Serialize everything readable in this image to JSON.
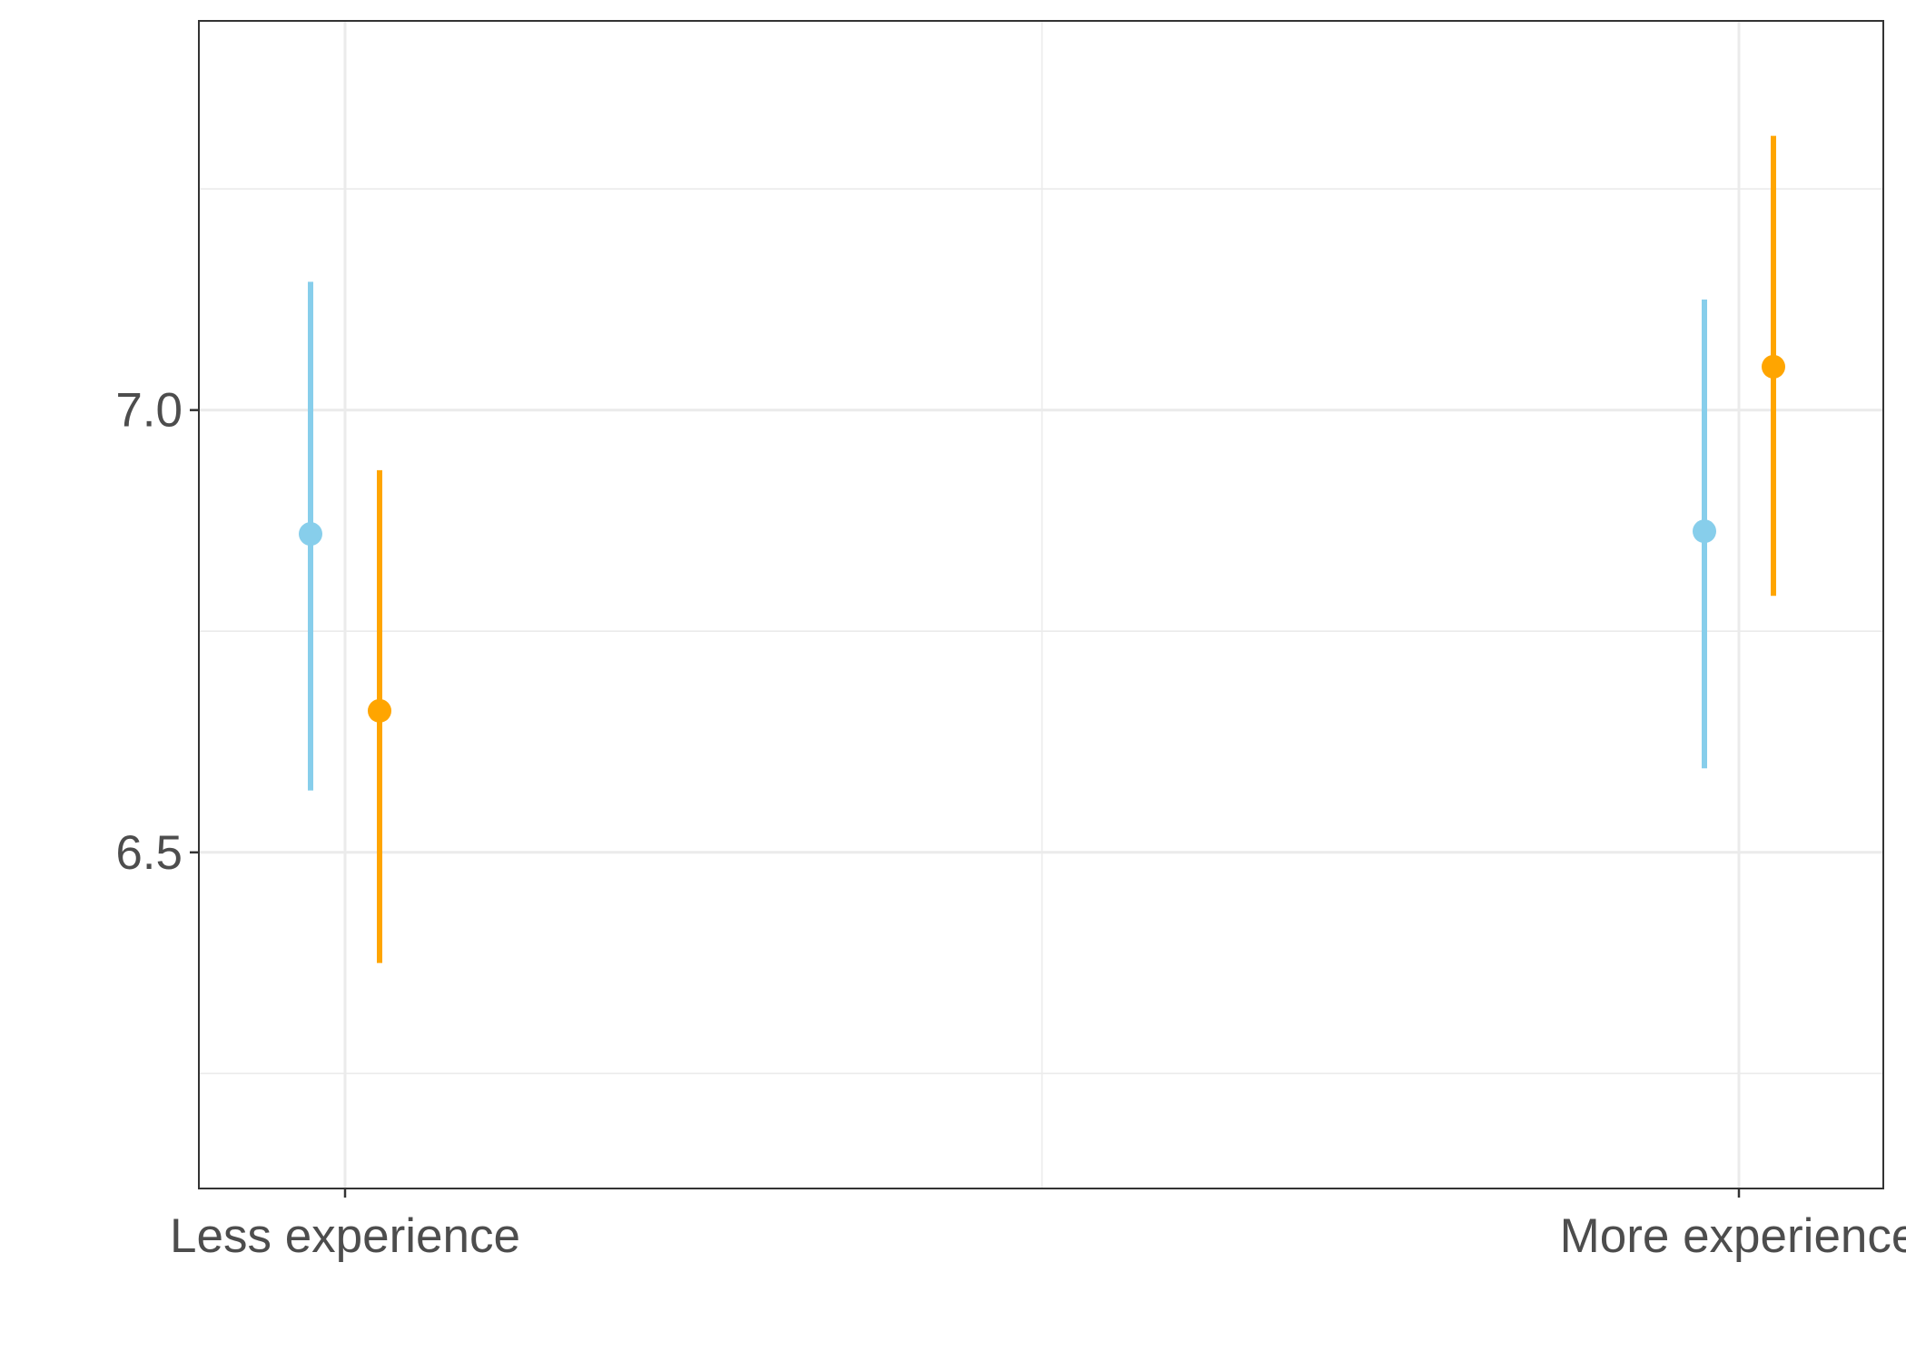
{
  "chart_data": {
    "type": "scatter",
    "title": "",
    "xlabel": "",
    "ylabel": "",
    "categories": [
      "Less experience",
      "More experience"
    ],
    "y_ticks": [
      "6.5",
      "7.0"
    ],
    "ylim": [
      6.12,
      7.44
    ],
    "grid": true,
    "legend": "none",
    "series": [
      {
        "color": "#87CEEB",
        "points": [
          {
            "category": "Less experience",
            "y": 6.86,
            "ymin": 6.57,
            "ymax": 7.145
          },
          {
            "category": "More experience",
            "y": 6.863,
            "ymin": 6.595,
            "ymax": 7.125
          }
        ]
      },
      {
        "color": "#FFA500",
        "points": [
          {
            "category": "Less experience",
            "y": 6.66,
            "ymin": 6.375,
            "ymax": 6.932
          },
          {
            "category": "More experience",
            "y": 7.049,
            "ymin": 6.79,
            "ymax": 7.31
          }
        ]
      }
    ]
  }
}
